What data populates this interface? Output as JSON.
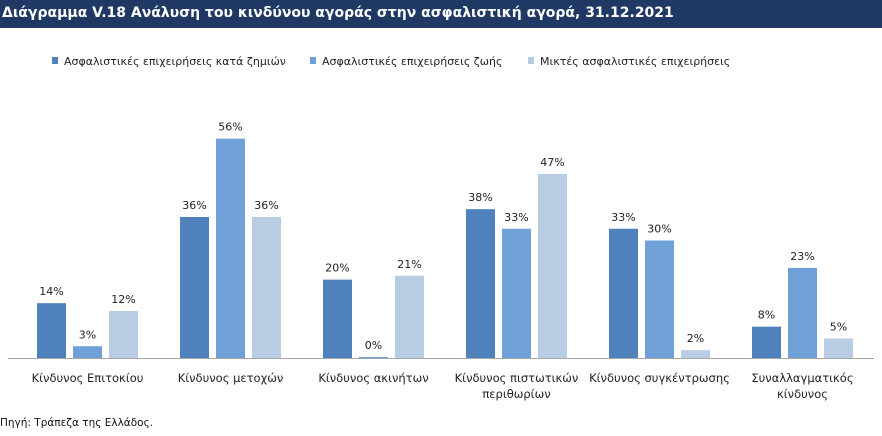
{
  "title": "Διάγραμμα V.18 Ανάλυση του κινδύνου αγοράς στην ασφαλιστική αγορά, 31.12.2021",
  "source": "Πηγή: Τράπεζα της Ελλάδος.",
  "colors": {
    "title_bg": "#1f3864",
    "title_fg": "#ffffff"
  },
  "chart_data": {
    "type": "bar",
    "title": "Διάγραμμα V.18 Ανάλυση του κινδύνου αγοράς στην ασφαλιστική αγορά, 31.12.2021",
    "xlabel": "",
    "ylabel": "",
    "ylim": [
      0,
      60
    ],
    "value_suffix": "%",
    "grid": false,
    "legend_position": "top",
    "categories": [
      [
        "Κίνδυνος Επιτοκίου"
      ],
      [
        "Κίνδυνος μετοχών"
      ],
      [
        "Κίνδυνος ακινήτων"
      ],
      [
        "Κίνδυνος πιστωτικών",
        "περιθωρίων"
      ],
      [
        "Κίνδυνος συγκέντρωσης"
      ],
      [
        "Συναλλαγματικός",
        "κίνδυνος"
      ]
    ],
    "series": [
      {
        "name": "Ασφαλιστικές επιχειρήσεις κατά ζημιών",
        "color": "#4f81bd",
        "values": [
          14,
          36,
          20,
          38,
          33,
          8
        ]
      },
      {
        "name": "Ασφαλιστικές επιχειρήσεις ζωής",
        "color": "#6fa0d8",
        "values": [
          3,
          56,
          0,
          33,
          30,
          23
        ]
      },
      {
        "name": "Μικτές ασφαλιστικές επιχειρήσεις",
        "color": "#b8cce4",
        "values": [
          12,
          36,
          21,
          47,
          2,
          5
        ]
      }
    ]
  }
}
